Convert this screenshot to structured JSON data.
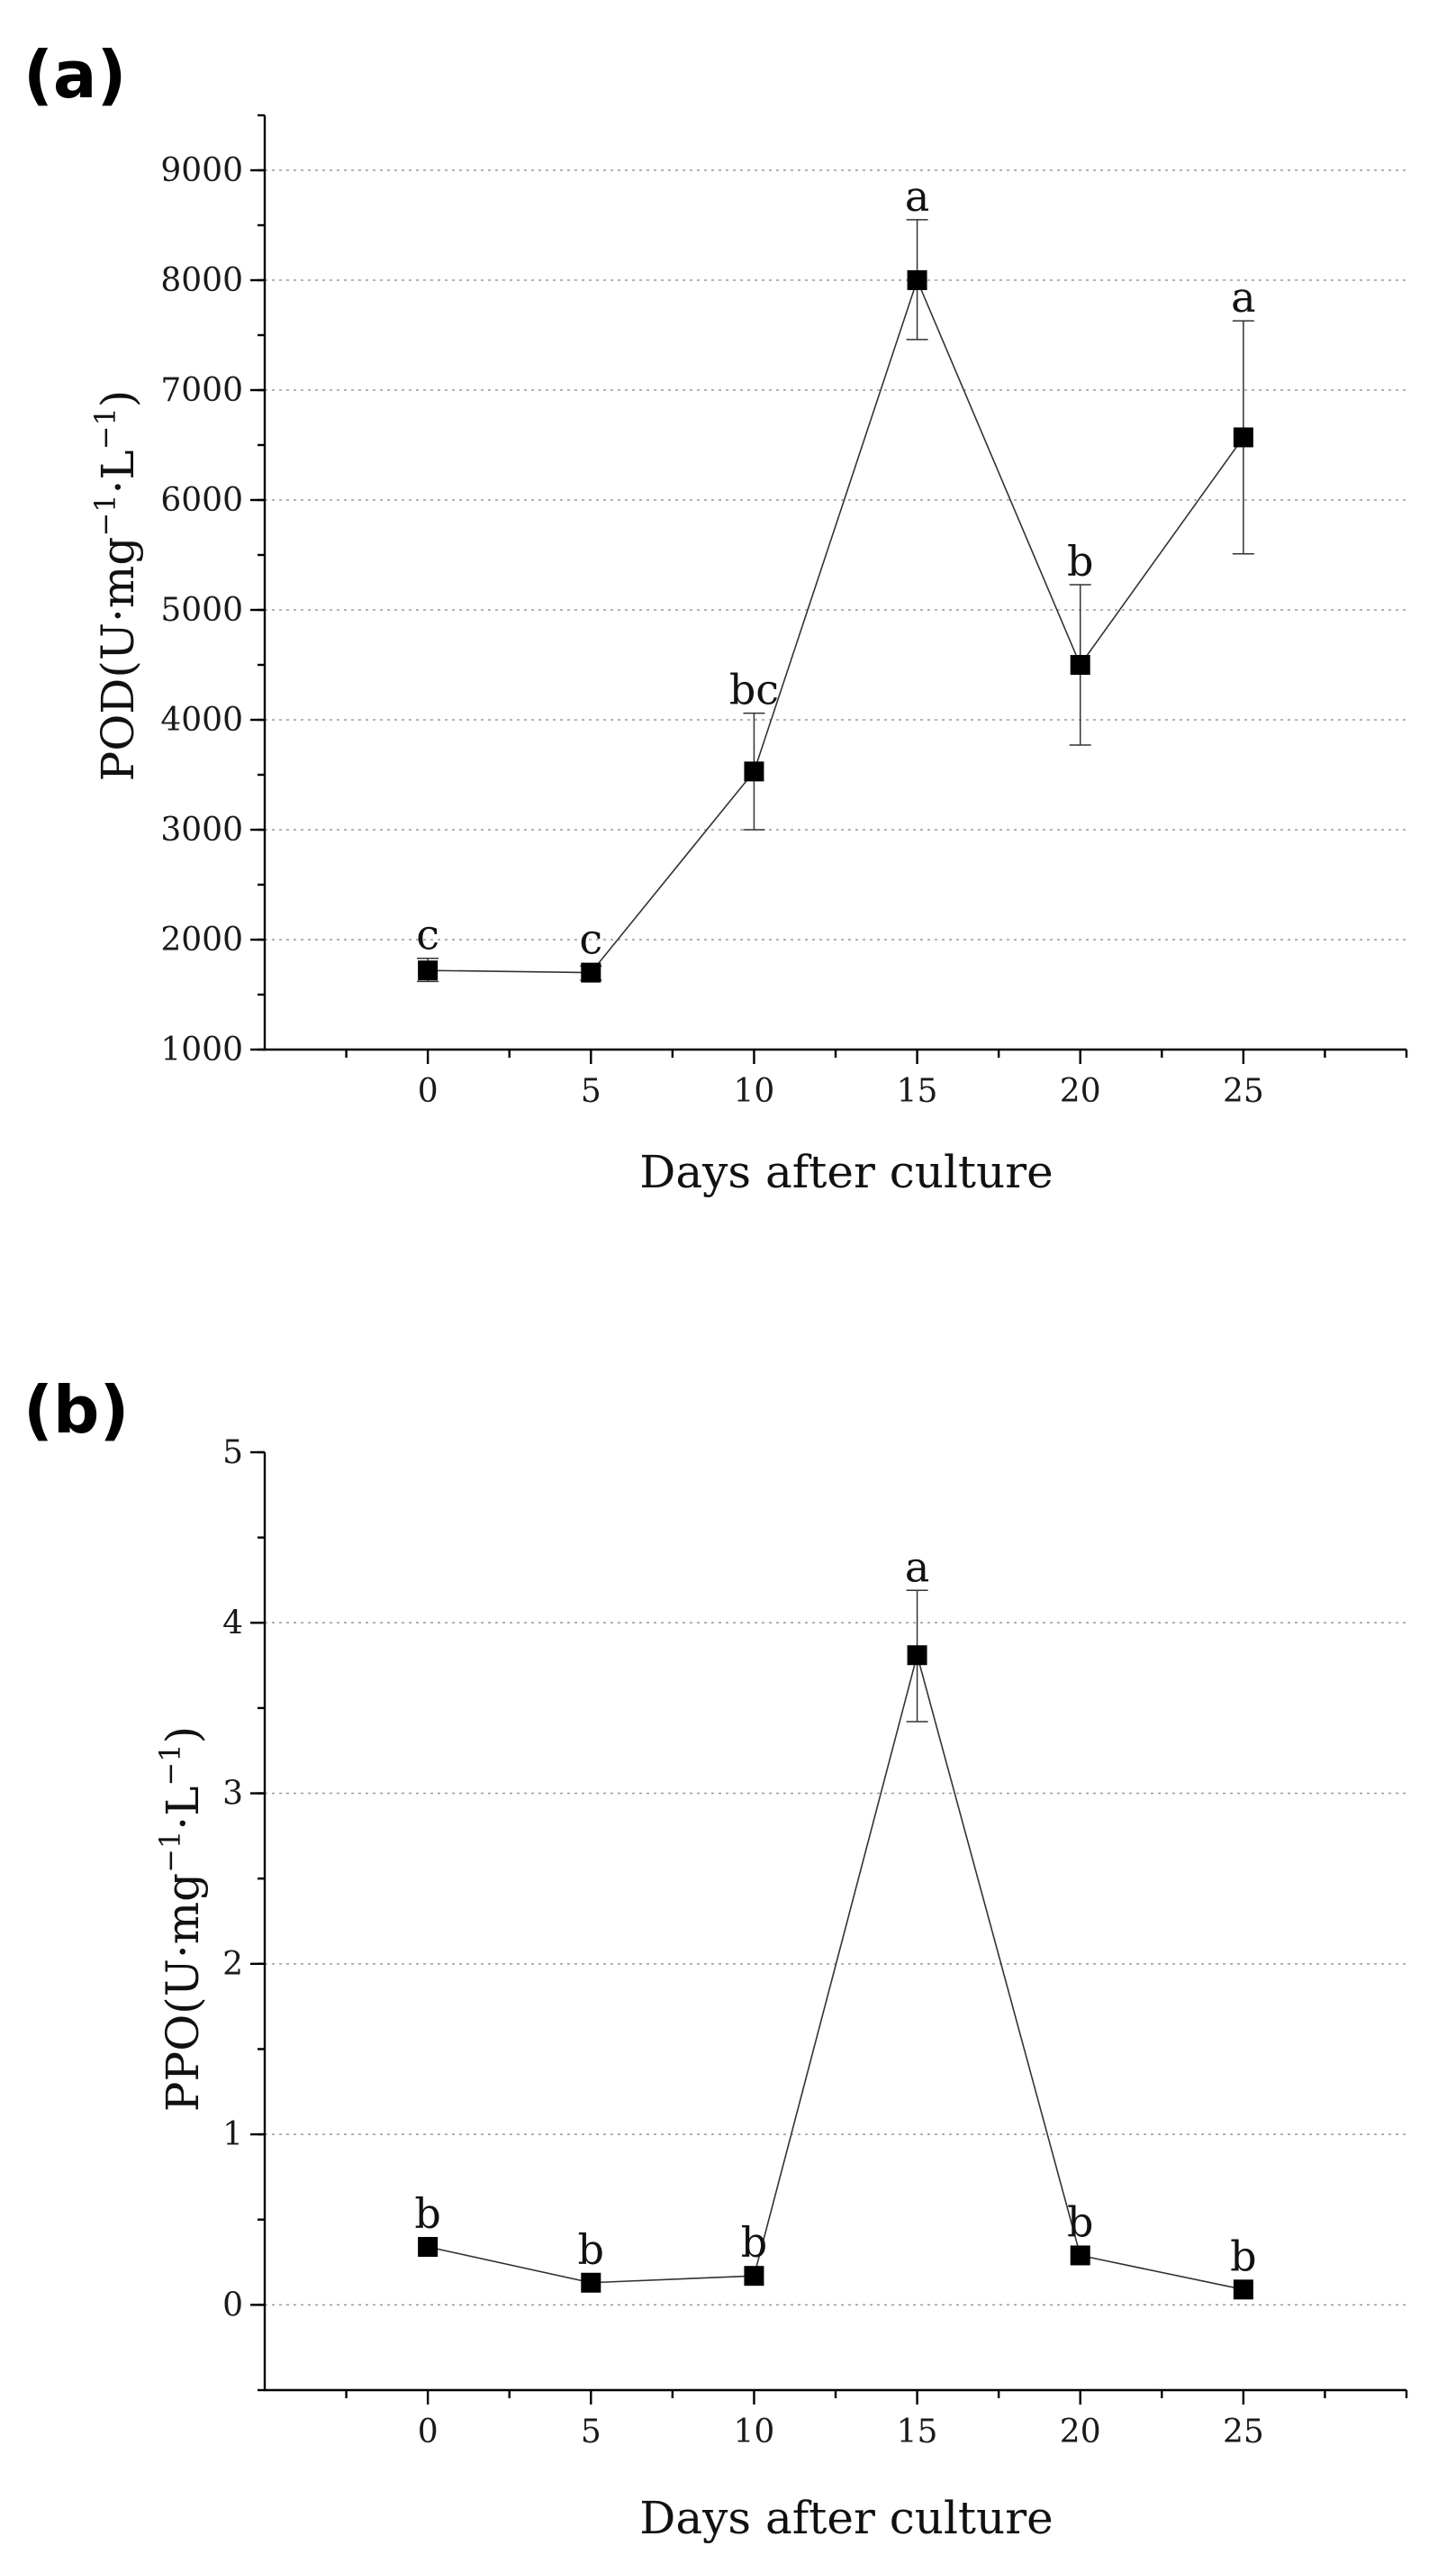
{
  "chart_data": [
    {
      "id": "a",
      "type": "line",
      "panel_label": "(a)",
      "ylabel_main": "POD(U·mg",
      "ylabel_sup1": "−1",
      "ylabel_mid": "·L",
      "ylabel_sup2": "−1",
      "ylabel_close": ")",
      "xlabel": "Days after culture",
      "xlim": [
        -5,
        30
      ],
      "ylim": [
        1000,
        9500
      ],
      "xticks": [
        0,
        5,
        10,
        15,
        20,
        25
      ],
      "yticks": [
        1000,
        2000,
        3000,
        4000,
        5000,
        6000,
        7000,
        8000,
        9000
      ],
      "grid_y": [
        2000,
        3000,
        4000,
        5000,
        6000,
        7000,
        8000,
        9000
      ],
      "minor_y_step": 500,
      "x": [
        0,
        5,
        10,
        15,
        20,
        25
      ],
      "y": [
        1720,
        1700,
        3530,
        8000,
        4500,
        6570
      ],
      "err_low": [
        1620,
        1630,
        3000,
        7460,
        3770,
        5510
      ],
      "err_high": [
        1830,
        1760,
        4060,
        8550,
        5230,
        7630
      ],
      "sig": [
        "c",
        "c",
        "bc",
        "a",
        "b",
        "a"
      ]
    },
    {
      "id": "b",
      "type": "line",
      "panel_label": "(b)",
      "ylabel_main": "PPO(U·mg",
      "ylabel_sup1": "−1",
      "ylabel_mid": "·L",
      "ylabel_sup2": "−1",
      "ylabel_close": ")",
      "xlabel": "Days after culture",
      "xlim": [
        -5,
        30
      ],
      "ylim": [
        -0.5,
        5
      ],
      "xticks": [
        0,
        5,
        10,
        15,
        20,
        25
      ],
      "yticks": [
        0,
        1,
        2,
        3,
        4,
        5
      ],
      "grid_y": [
        0,
        1,
        2,
        3,
        4
      ],
      "minor_y_step": 0.5,
      "x": [
        0,
        5,
        10,
        15,
        20,
        25
      ],
      "y": [
        0.34,
        0.13,
        0.17,
        3.81,
        0.29,
        0.09
      ],
      "err_low": [
        0.34,
        0.13,
        0.17,
        3.42,
        0.29,
        0.09
      ],
      "err_high": [
        0.34,
        0.13,
        0.17,
        4.19,
        0.29,
        0.09
      ],
      "sig": [
        "b",
        "b",
        "b",
        "a",
        "b",
        "b"
      ]
    }
  ]
}
